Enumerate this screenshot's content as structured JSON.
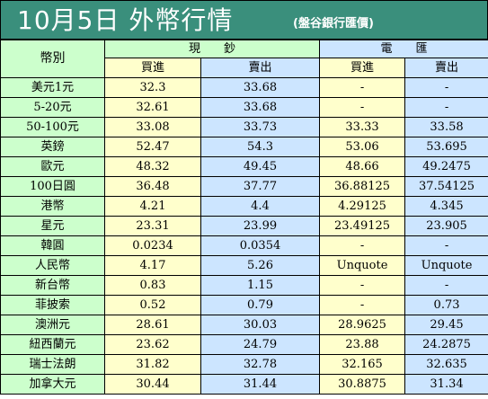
{
  "header": {
    "title": "10月5日 外幣行情",
    "subtitle": "(盤谷銀行匯價)"
  },
  "columns": {
    "currency": "幣別",
    "cash": "現　　鈔",
    "wire": "電　　匯",
    "buy": "買進",
    "sell": "賣出"
  },
  "rows": [
    {
      "name": "美元1元",
      "cash_buy": "32.3",
      "cash_sell": "33.68",
      "wire_buy": "-",
      "wire_sell": "-"
    },
    {
      "name": "5-20元",
      "cash_buy": "32.61",
      "cash_sell": "33.68",
      "wire_buy": "-",
      "wire_sell": "-"
    },
    {
      "name": "50-100元",
      "cash_buy": "33.08",
      "cash_sell": "33.73",
      "wire_buy": "33.33",
      "wire_sell": "33.58"
    },
    {
      "name": "英鎊",
      "cash_buy": "52.47",
      "cash_sell": "54.3",
      "wire_buy": "53.06",
      "wire_sell": "53.695"
    },
    {
      "name": "歐元",
      "cash_buy": "48.32",
      "cash_sell": "49.45",
      "wire_buy": "48.66",
      "wire_sell": "49.2475"
    },
    {
      "name": "100日圓",
      "cash_buy": "36.48",
      "cash_sell": "37.77",
      "wire_buy": "36.88125",
      "wire_sell": "37.54125"
    },
    {
      "name": "港幣",
      "cash_buy": "4.21",
      "cash_sell": "4.4",
      "wire_buy": "4.29125",
      "wire_sell": "4.345"
    },
    {
      "name": "星元",
      "cash_buy": "23.31",
      "cash_sell": "23.99",
      "wire_buy": "23.49125",
      "wire_sell": "23.905"
    },
    {
      "name": "韓圓",
      "cash_buy": "0.0234",
      "cash_sell": "0.0354",
      "wire_buy": "-",
      "wire_sell": "-"
    },
    {
      "name": "人民幣",
      "cash_buy": "4.17",
      "cash_sell": "5.26",
      "wire_buy": "Unquote",
      "wire_sell": "Unquote"
    },
    {
      "name": "新台幣",
      "cash_buy": "0.83",
      "cash_sell": "1.15",
      "wire_buy": "-",
      "wire_sell": "-"
    },
    {
      "name": "菲披索",
      "cash_buy": "0.52",
      "cash_sell": "0.79",
      "wire_buy": "-",
      "wire_sell": "0.73"
    },
    {
      "name": "澳洲元",
      "cash_buy": "28.61",
      "cash_sell": "30.03",
      "wire_buy": "28.9625",
      "wire_sell": "29.45"
    },
    {
      "name": "紐西蘭元",
      "cash_buy": "23.62",
      "cash_sell": "24.79",
      "wire_buy": "23.88",
      "wire_sell": "24.2875"
    },
    {
      "name": "瑞士法朗",
      "cash_buy": "31.82",
      "cash_sell": "32.78",
      "wire_buy": "32.165",
      "wire_sell": "32.635"
    },
    {
      "name": "加拿大元",
      "cash_buy": "30.44",
      "cash_sell": "31.44",
      "wire_buy": "30.8875",
      "wire_sell": "31.34"
    }
  ],
  "colors": {
    "title_bg": "#3a8f7c",
    "name_bg": "#ccffcc",
    "cash_bg": "#ffffcc",
    "wire_bg": "#cce5ff"
  }
}
